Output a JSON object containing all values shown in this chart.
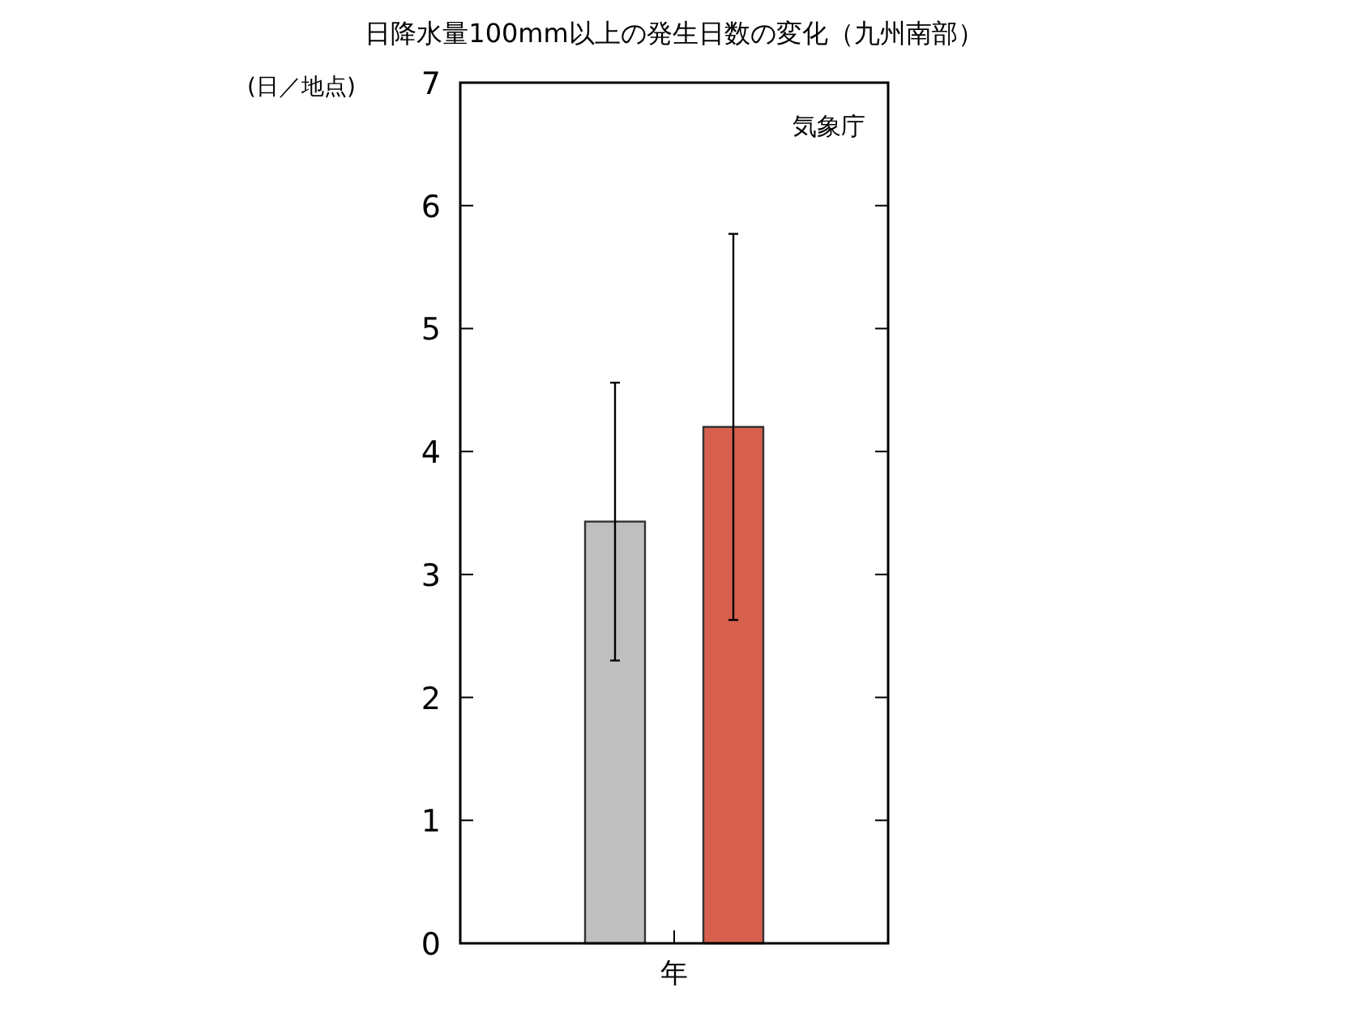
{
  "chart_data": {
    "type": "bar",
    "title": "日降水量100mm以上の発生日数の変化（九州南部）",
    "xlabel": "年",
    "ylabel": "(日／地点)",
    "annotations": [
      "気象庁"
    ],
    "categories": [
      null,
      null
    ],
    "values": [
      3.43,
      4.2
    ],
    "colors": [
      "#bfbfbf",
      "#d6604d"
    ],
    "errors": [
      1.13,
      1.57
    ],
    "ylim": [
      0,
      7
    ],
    "yticks": [
      0,
      1,
      2,
      3,
      4,
      5,
      6,
      7
    ],
    "grid": false
  }
}
